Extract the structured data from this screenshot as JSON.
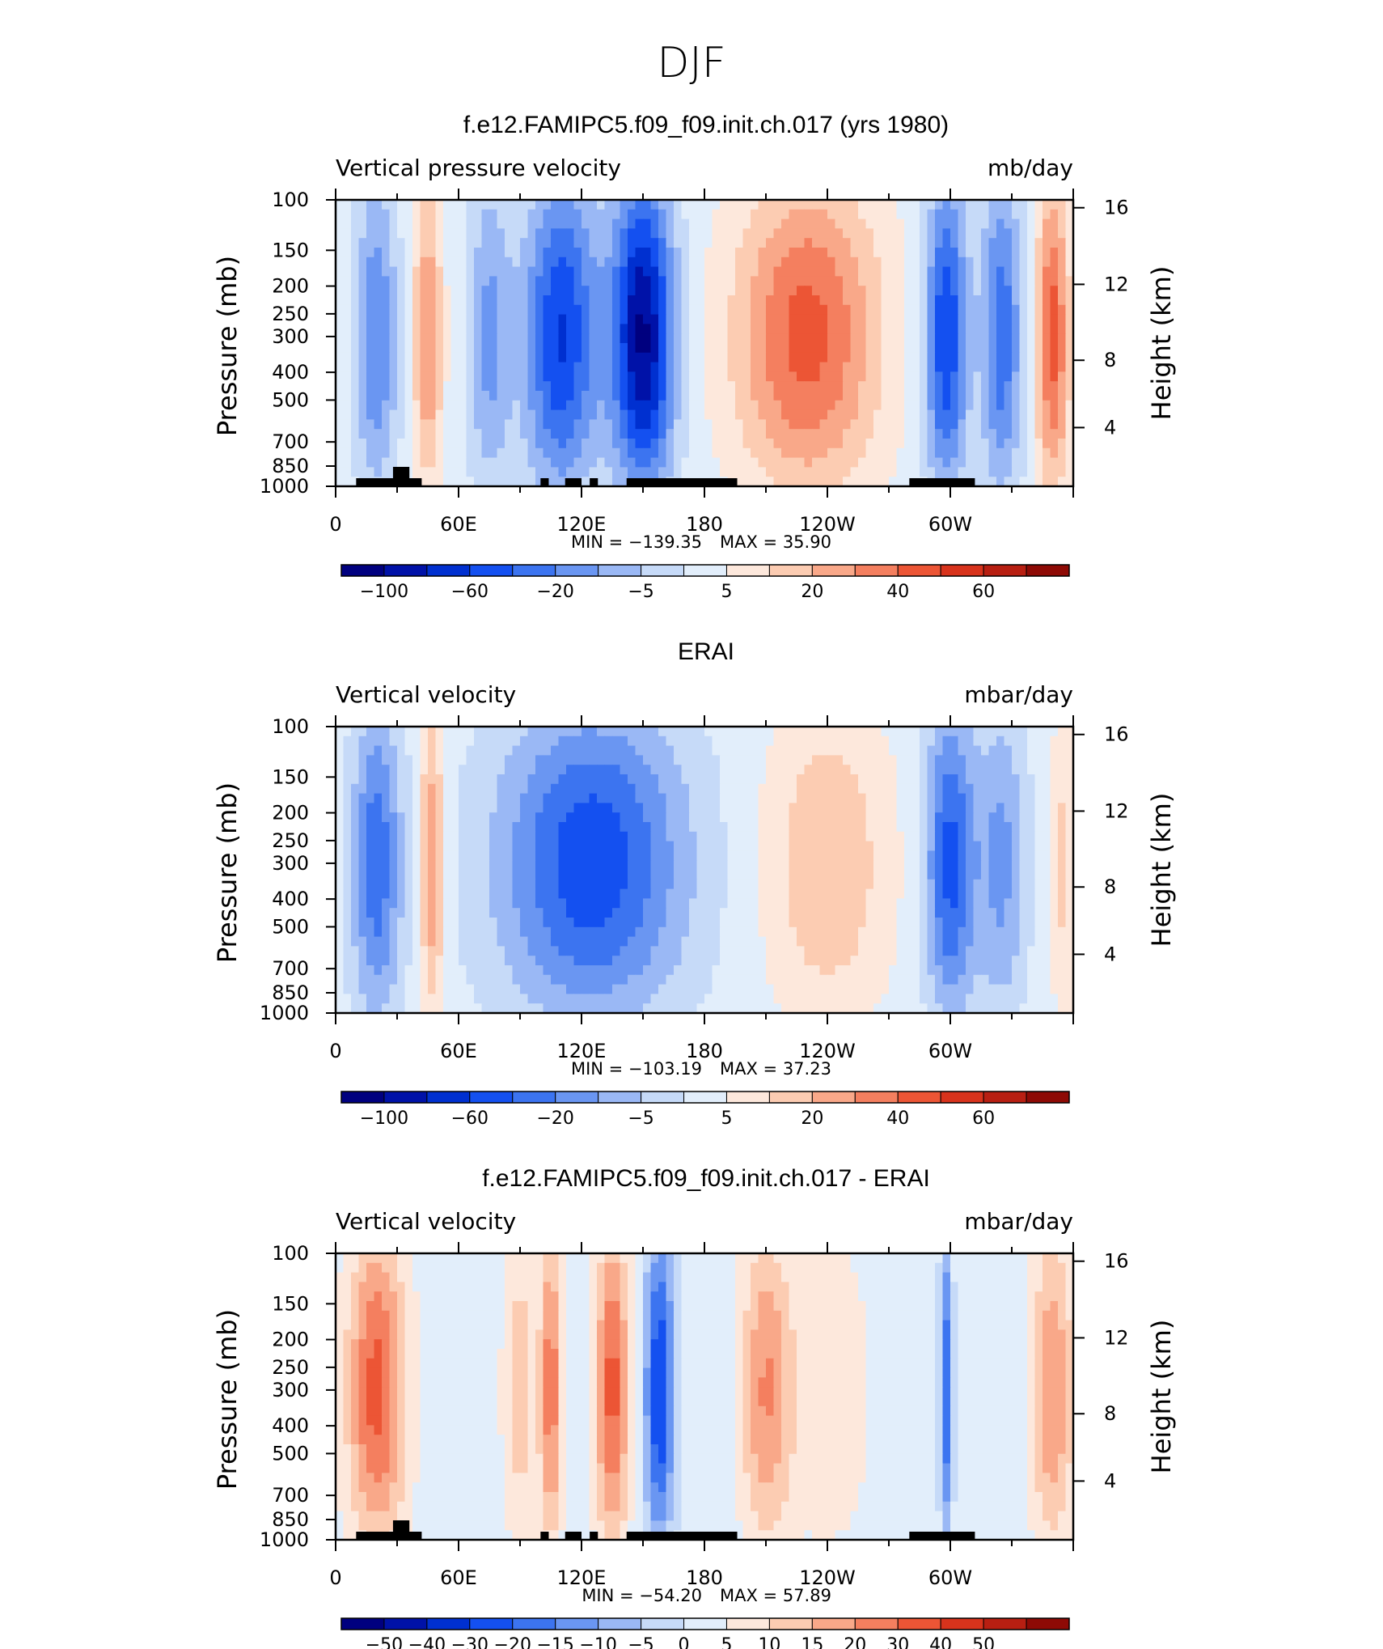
{
  "figure": {
    "title": "DJF"
  },
  "chart_data": [
    {
      "type": "heatmap",
      "title": "f.e12.FAMIPC5.f09_f09.init.ch.017 (yrs 1980)",
      "left_title": "Vertical pressure velocity",
      "right_title": "mb/day",
      "ylabel": "Pressure (mb)",
      "y2label": "Height (km)",
      "x_ticks": [
        "0",
        "60E",
        "120E",
        "180",
        "120W",
        "60W"
      ],
      "y_ticks": [
        "100",
        "150",
        "200",
        "250",
        "300",
        "400",
        "500",
        "700",
        "850",
        "1000"
      ],
      "y2_ticks": [
        "16",
        "12",
        "8",
        "4"
      ],
      "min_label": "MIN = −139.35",
      "max_label": "MAX = 35.90",
      "colorbar_labels": [
        "−100",
        "−60",
        "−20",
        "−5",
        "5",
        "20",
        "40",
        "60"
      ],
      "colorbar_colors": [
        "#00007f",
        "#0012a8",
        "#0030d0",
        "#1450f0",
        "#3c74f0",
        "#6a96f2",
        "#9ab8f5",
        "#c6daf8",
        "#e2eefb",
        "#fde8dc",
        "#fcccb2",
        "#f9a889",
        "#f47f5f",
        "#ec5535",
        "#d8331c",
        "#b81f12",
        "#8e0a05"
      ],
      "min_value": -139.35,
      "max_value": 35.9
    },
    {
      "type": "heatmap",
      "title": "ERAI",
      "left_title": "Vertical velocity",
      "right_title": "mbar/day",
      "ylabel": "Pressure (mb)",
      "y2label": "Height (km)",
      "x_ticks": [
        "0",
        "60E",
        "120E",
        "180",
        "120W",
        "60W"
      ],
      "y_ticks": [
        "100",
        "150",
        "200",
        "250",
        "300",
        "400",
        "500",
        "700",
        "850",
        "1000"
      ],
      "y2_ticks": [
        "16",
        "12",
        "8",
        "4"
      ],
      "min_label": "MIN = −103.19",
      "max_label": "MAX = 37.23",
      "colorbar_labels": [
        "−100",
        "−60",
        "−20",
        "−5",
        "5",
        "20",
        "40",
        "60"
      ],
      "colorbar_colors": [
        "#00007f",
        "#0012a8",
        "#0030d0",
        "#1450f0",
        "#3c74f0",
        "#6a96f2",
        "#9ab8f5",
        "#c6daf8",
        "#e2eefb",
        "#fde8dc",
        "#fcccb2",
        "#f9a889",
        "#f47f5f",
        "#ec5535",
        "#d8331c",
        "#b81f12",
        "#8e0a05"
      ],
      "min_value": -103.19,
      "max_value": 37.23
    },
    {
      "type": "heatmap",
      "title": "f.e12.FAMIPC5.f09_f09.init.ch.017 - ERAI",
      "left_title": "Vertical velocity",
      "right_title": "mbar/day",
      "ylabel": "Pressure (mb)",
      "y2label": "Height (km)",
      "x_ticks": [
        "0",
        "60E",
        "120E",
        "180",
        "120W",
        "60W"
      ],
      "y_ticks": [
        "100",
        "150",
        "200",
        "250",
        "300",
        "400",
        "500",
        "700",
        "850",
        "1000"
      ],
      "y2_ticks": [
        "16",
        "12",
        "8",
        "4"
      ],
      "min_label": "MIN = −54.20",
      "max_label": "MAX = 57.89",
      "colorbar_labels": [
        "−50",
        "−40",
        "−30",
        "−20",
        "−15",
        "−10",
        "−5",
        "0",
        "5",
        "10",
        "15",
        "20",
        "30",
        "40",
        "50"
      ],
      "colorbar_colors": [
        "#00007f",
        "#0012a8",
        "#0030d0",
        "#1450f0",
        "#3c74f0",
        "#6a96f2",
        "#9ab8f5",
        "#c6daf8",
        "#e2eefb",
        "#fde8dc",
        "#fcccb2",
        "#f9a889",
        "#f47f5f",
        "#ec5535",
        "#d8331c",
        "#b81f12",
        "#8e0a05"
      ],
      "min_value": -54.2,
      "max_value": 57.89
    }
  ]
}
